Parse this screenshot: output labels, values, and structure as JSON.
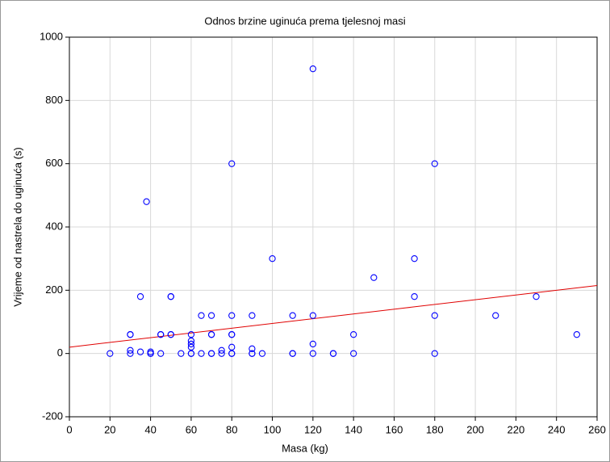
{
  "chart_data": {
    "type": "scatter",
    "title": "Odnos brzine uginuća prema tjelesnoj masi",
    "x_label": "Masa (kg)",
    "y_label": "Vrijeme od nastrela do uginuća (s)",
    "x": [
      20,
      30,
      30,
      30,
      30,
      35,
      35,
      38,
      40,
      40,
      40,
      45,
      45,
      45,
      50,
      50,
      50,
      50,
      55,
      60,
      60,
      60,
      60,
      60,
      60,
      65,
      65,
      70,
      70,
      70,
      70,
      70,
      75,
      75,
      80,
      80,
      80,
      80,
      80,
      80,
      80,
      90,
      90,
      90,
      90,
      95,
      100,
      110,
      110,
      110,
      120,
      120,
      120,
      120,
      130,
      130,
      140,
      140,
      150,
      170,
      170,
      180,
      180,
      180,
      210,
      230,
      250
    ],
    "values": [
      0,
      60,
      60,
      10,
      0,
      180,
      5,
      480,
      5,
      0,
      0,
      60,
      60,
      0,
      180,
      180,
      60,
      60,
      0,
      60,
      40,
      30,
      20,
      0,
      0,
      120,
      0,
      120,
      60,
      60,
      0,
      0,
      10,
      0,
      600,
      120,
      60,
      60,
      20,
      0,
      0,
      120,
      15,
      0,
      0,
      0,
      300,
      120,
      0,
      0,
      900,
      120,
      30,
      0,
      0,
      0,
      60,
      0,
      240,
      300,
      180,
      600,
      120,
      0,
      120,
      180,
      60
    ],
    "color": "#0000ff",
    "trend_line": {
      "x": [
        0,
        260
      ],
      "values": [
        20,
        215
      ],
      "color": "#e00000"
    },
    "xlim": [
      0,
      260
    ],
    "xticks": [
      0,
      20,
      40,
      60,
      80,
      100,
      120,
      140,
      160,
      180,
      200,
      220,
      240,
      260
    ],
    "ylim": [
      -200,
      1000
    ],
    "yticks": [
      -200,
      0,
      200,
      400,
      600,
      800,
      1000
    ],
    "grid": true
  }
}
